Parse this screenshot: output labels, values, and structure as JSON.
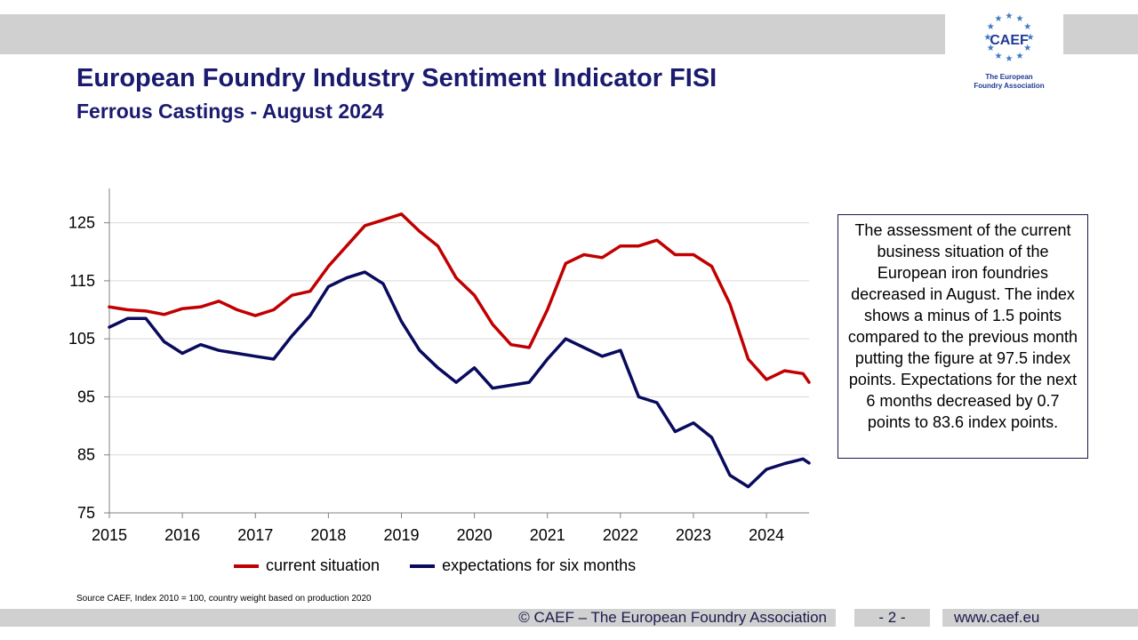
{
  "header": {
    "title": "European Foundry Industry Sentiment Indicator FISI",
    "subtitle": "Ferrous Castings - August 2024"
  },
  "logo": {
    "name": "CAEF",
    "tagline_line1": "The European",
    "tagline_line2": "Foundry Association"
  },
  "commentary": "The assessment of the current business situation of the European iron foundries decreased in August. The index shows a minus of 1.5 points compared to the previous month putting the figure at 97.5 index points. Expectations for the next 6 months decreased by 0.7 points to 83.6 index points.",
  "source_note": "Source CAEF, Index 2010 = 100, country weight based on production 2020",
  "footer": {
    "copyright": "© CAEF – The European Foundry Association",
    "page": "- 2 -",
    "website": "www.caef.eu"
  },
  "colors": {
    "current": "#c00000",
    "expectations": "#0a0a5e",
    "band": "#d0d0d0",
    "title": "#1a1a6e"
  },
  "chart_data": {
    "type": "line",
    "title": "",
    "xlabel": "",
    "ylabel": "",
    "grid": "horizontal",
    "legend_position": "bottom",
    "ylim": [
      75,
      130
    ],
    "yticks": [
      75,
      85,
      95,
      105,
      115,
      125
    ],
    "xlim": [
      "2015-01",
      "2024-08"
    ],
    "xticks": [
      "2015",
      "2016",
      "2017",
      "2018",
      "2019",
      "2020",
      "2021",
      "2022",
      "2023",
      "2024"
    ],
    "x": [
      "2015-01",
      "2015-04",
      "2015-07",
      "2015-10",
      "2016-01",
      "2016-04",
      "2016-07",
      "2016-10",
      "2017-01",
      "2017-04",
      "2017-07",
      "2017-10",
      "2018-01",
      "2018-04",
      "2018-07",
      "2018-10",
      "2019-01",
      "2019-04",
      "2019-07",
      "2019-10",
      "2020-01",
      "2020-04",
      "2020-07",
      "2020-10",
      "2021-01",
      "2021-04",
      "2021-07",
      "2021-10",
      "2022-01",
      "2022-04",
      "2022-07",
      "2022-10",
      "2023-01",
      "2023-04",
      "2023-07",
      "2023-10",
      "2024-01",
      "2024-04",
      "2024-07",
      "2024-08"
    ],
    "series": [
      {
        "name": "current situation",
        "color": "#c00000",
        "values": [
          110.5,
          110.0,
          109.8,
          109.2,
          110.2,
          110.5,
          111.5,
          110.0,
          109.0,
          110.0,
          112.5,
          113.2,
          117.5,
          121.0,
          124.5,
          125.5,
          126.5,
          123.5,
          121.0,
          115.5,
          112.5,
          107.5,
          104.0,
          103.5,
          110.0,
          118.0,
          119.5,
          119.0,
          121.0,
          121.0,
          122.0,
          119.5,
          119.5,
          117.5,
          111.0,
          101.5,
          98.0,
          99.5,
          99.0,
          97.5
        ]
      },
      {
        "name": "expectations for six months",
        "color": "#0a0a5e",
        "values": [
          107.0,
          108.5,
          108.5,
          104.5,
          102.5,
          104.0,
          103.0,
          102.5,
          102.0,
          101.5,
          105.5,
          109.0,
          114.0,
          115.5,
          116.5,
          114.5,
          108.0,
          103.0,
          100.0,
          97.5,
          100.0,
          96.5,
          97.0,
          97.5,
          101.5,
          105.0,
          103.5,
          102.0,
          103.0,
          95.0,
          94.0,
          89.0,
          90.5,
          88.0,
          81.5,
          79.5,
          82.5,
          83.5,
          84.3,
          83.6
        ]
      }
    ]
  }
}
